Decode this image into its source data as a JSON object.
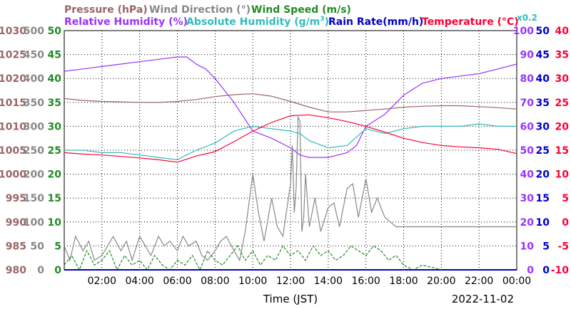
{
  "colors": {
    "pressure": "#996666",
    "wind_direction": "#888888",
    "wind_speed": "#228b22",
    "humidity": "#9933ff",
    "abs_humidity": "#33bbbb",
    "rain": "#0000cc",
    "temperature": "#ff0033",
    "grid": "#000000"
  },
  "chart_data": {
    "type": "line",
    "date": "2022-11-02",
    "xlabel": "Time (JST)",
    "xticks": [
      "02:00",
      "04:00",
      "06:00",
      "08:00",
      "10:00",
      "12:00",
      "14:00",
      "16:00",
      "18:00",
      "20:00",
      "22:00",
      "00:00"
    ],
    "xlim_hours": [
      0,
      24
    ],
    "axes": {
      "pressure": {
        "label": "Pressure (hPa)",
        "ticks": [
          "1030",
          "1025",
          "1020",
          "1015",
          "1010",
          "1005",
          "1000",
          "995",
          "990",
          "985",
          "980"
        ],
        "ylim": [
          980,
          1030
        ]
      },
      "wind_direction": {
        "label": "Wind Direction (°)",
        "ticks": [
          "500",
          "450",
          "400",
          "350",
          "300",
          "250",
          "200",
          "150",
          "100",
          "50",
          "0"
        ],
        "ylim": [
          0,
          500
        ]
      },
      "wind_speed": {
        "label": "Wind Speed (m/s)",
        "ticks": [
          "50",
          "45",
          "40",
          "35",
          "30",
          "25",
          "20",
          "15",
          "10",
          "5",
          "0"
        ],
        "ylim": [
          0,
          50
        ]
      },
      "humidity": {
        "label": "Relative Humidity (%)",
        "ticks": [
          "100",
          "90",
          "80",
          "70",
          "60",
          "50",
          "40",
          "30",
          "20",
          "10",
          "0"
        ],
        "ylim": [
          0,
          100
        ]
      },
      "abs_humidity": {
        "label": "Absolute Humidity (g/m",
        "sup": "3",
        "label_end": ")",
        "scale": "x0.2",
        "ylim": [
          0,
          100
        ]
      },
      "rain": {
        "label": "Rain Rate(mm/h)",
        "ticks": [
          "50",
          "45",
          "40",
          "35",
          "30",
          "25",
          "20",
          "15",
          "10",
          "5",
          "0"
        ],
        "ylim": [
          0,
          50
        ]
      },
      "temperature": {
        "label": "Temperature (°C)",
        "ticks": [
          "40",
          "35",
          "30",
          "25",
          "20",
          "15",
          "10",
          "5",
          "0",
          "-5",
          "-10"
        ],
        "ylim": [
          -10,
          40
        ]
      }
    },
    "series": [
      {
        "name": "Pressure (hPa)",
        "key": "pressure",
        "x": [
          0,
          1,
          2,
          3,
          4,
          5,
          6,
          7,
          8,
          9,
          10,
          11,
          12,
          13,
          14,
          15,
          16,
          17,
          18,
          19,
          20,
          21,
          22,
          23,
          24
        ],
        "y": [
          1015.8,
          1015.4,
          1015.2,
          1015.1,
          1015.0,
          1015.0,
          1015.2,
          1015.6,
          1016.2,
          1016.6,
          1016.8,
          1016.3,
          1015.2,
          1014.0,
          1013.0,
          1013.0,
          1013.3,
          1013.6,
          1014.0,
          1014.2,
          1014.3,
          1014.3,
          1014.1,
          1013.9,
          1013.6
        ]
      },
      {
        "name": "Wind Direction (°)",
        "key": "wind_direction",
        "x": [
          0,
          0.3,
          0.6,
          1,
          1.3,
          1.6,
          2,
          2.3,
          2.6,
          3,
          3.3,
          3.6,
          4,
          4.3,
          4.6,
          5,
          5.3,
          5.6,
          6,
          6.3,
          6.6,
          7,
          7.3,
          7.6,
          8,
          8.3,
          8.6,
          9,
          9.3,
          9.6,
          10,
          10.3,
          10.6,
          11,
          11.3,
          11.6,
          12,
          12.1,
          12.2,
          12.3,
          12.4,
          12.5,
          12.6,
          12.7,
          12.8,
          13,
          13.3,
          13.6,
          14,
          14.3,
          14.6,
          15,
          15.3,
          15.6,
          16,
          16.3,
          16.6,
          17,
          17.3,
          17.6,
          18,
          18.5,
          19,
          20,
          21,
          22,
          23,
          24
        ],
        "y": [
          50,
          20,
          70,
          40,
          60,
          20,
          30,
          50,
          70,
          40,
          60,
          20,
          70,
          50,
          30,
          70,
          50,
          60,
          40,
          70,
          50,
          60,
          30,
          20,
          40,
          60,
          70,
          40,
          20,
          80,
          200,
          120,
          60,
          150,
          90,
          70,
          180,
          260,
          120,
          170,
          320,
          310,
          80,
          110,
          200,
          90,
          150,
          80,
          130,
          140,
          90,
          170,
          180,
          110,
          190,
          120,
          150,
          110,
          100,
          90,
          90,
          90,
          90,
          90,
          90,
          90,
          90,
          90
        ]
      },
      {
        "name": "Wind Speed (m/s)",
        "key": "wind_speed",
        "x": [
          0,
          0.4,
          0.8,
          1.2,
          1.6,
          2,
          2.4,
          2.8,
          3.2,
          3.6,
          4,
          4.4,
          4.8,
          5.2,
          5.6,
          6,
          6.4,
          6.8,
          7.2,
          7.6,
          8,
          8.4,
          8.8,
          9.2,
          9.6,
          10,
          10.4,
          10.8,
          11.2,
          11.6,
          12,
          12.4,
          12.8,
          13.2,
          13.6,
          14,
          14.4,
          14.8,
          15.2,
          15.6,
          16,
          16.4,
          16.8,
          17.2,
          17.6,
          18,
          18.5,
          19,
          20,
          21,
          22,
          23,
          24
        ],
        "y": [
          1,
          3,
          0,
          4,
          1,
          2,
          4,
          0,
          3,
          1,
          2,
          0,
          3,
          1,
          0,
          2,
          1,
          3,
          0,
          4,
          2,
          1,
          3,
          5,
          2,
          4,
          1,
          3,
          2,
          5,
          3,
          4,
          2,
          5,
          3,
          4,
          2,
          3,
          5,
          4,
          3,
          5,
          4,
          2,
          3,
          1,
          0,
          1,
          0,
          0,
          0,
          0,
          0
        ]
      },
      {
        "name": "Relative Humidity (%)",
        "key": "humidity",
        "x": [
          0,
          1,
          2,
          3,
          4,
          5,
          6,
          6.5,
          7,
          7.5,
          8,
          9,
          10,
          11,
          12,
          12.5,
          13,
          14,
          15,
          15.5,
          16,
          17,
          18,
          19,
          20,
          21,
          22,
          23,
          24
        ],
        "y": [
          83,
          84,
          85,
          86,
          87,
          88,
          89,
          89,
          86,
          84,
          80,
          70,
          58,
          55,
          51,
          48,
          47,
          47,
          49,
          52,
          60,
          65,
          73,
          78,
          80,
          81,
          82,
          84,
          86
        ]
      },
      {
        "name": "Absolute Humidity (g/m3)",
        "key": "abs_humidity",
        "x": [
          0,
          1,
          2,
          3,
          4,
          5,
          6,
          7,
          8,
          9,
          10,
          11,
          12,
          12.5,
          13,
          14,
          15,
          16,
          17,
          18,
          19,
          20,
          21,
          22,
          23,
          24
        ],
        "y": [
          50,
          50,
          49,
          49,
          48,
          47,
          46,
          50,
          53,
          58,
          60,
          59,
          58,
          57,
          54,
          51,
          52,
          59,
          57,
          59,
          60,
          60,
          60,
          61,
          60,
          60
        ]
      },
      {
        "name": "Rain Rate(mm/h)",
        "key": "rain",
        "x": [
          0,
          24
        ],
        "y": [
          0,
          0
        ]
      },
      {
        "name": "Temperature (°C)",
        "key": "temperature",
        "x": [
          0,
          1,
          2,
          3,
          4,
          5,
          6,
          7,
          8,
          9,
          10,
          11,
          12,
          13,
          14,
          15,
          16,
          17,
          18,
          19,
          20,
          21,
          22,
          23,
          24
        ],
        "y": [
          14.5,
          14.2,
          14.0,
          13.7,
          13.4,
          13.0,
          12.5,
          13.8,
          14.7,
          16.8,
          19.0,
          20.8,
          22.2,
          22.4,
          21.8,
          21.0,
          20.0,
          18.8,
          17.5,
          16.6,
          16.0,
          15.7,
          15.5,
          15.2,
          14.3
        ]
      }
    ]
  }
}
